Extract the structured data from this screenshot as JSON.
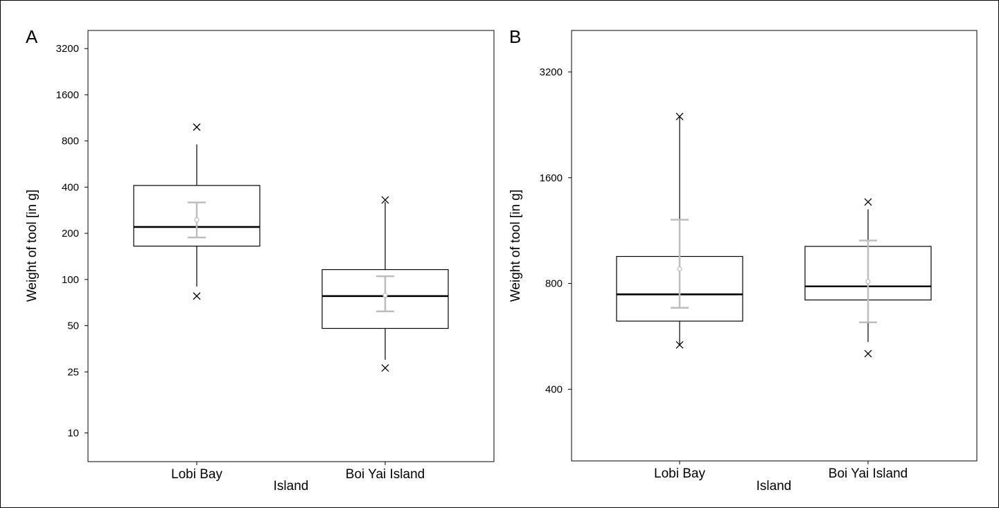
{
  "chart_data": [
    {
      "type": "box",
      "panel_label": "A",
      "xlabel": "Island",
      "ylabel": "Weight of tool [in g]",
      "yscale": "log",
      "ylim": [
        6.5,
        4200
      ],
      "yticks": [
        10,
        25,
        50,
        100,
        200,
        400,
        800,
        1600,
        3200
      ],
      "categories": [
        "Lobi Bay",
        "Boi Yai Island"
      ],
      "groups": [
        {
          "category": "Lobi Bay",
          "q1": 165,
          "median": 220,
          "q3": 410,
          "whisker_low": 90,
          "whisker_high": 760,
          "min_marker": 78,
          "max_marker": 985,
          "mean": 245,
          "ci_low": 188,
          "ci_high": 318
        },
        {
          "category": "Boi Yai Island",
          "q1": 48,
          "median": 78,
          "q3": 116,
          "whisker_low": 30,
          "whisker_high": 320,
          "min_marker": 26.5,
          "max_marker": 330,
          "mean": 79,
          "ci_low": 62,
          "ci_high": 105
        }
      ]
    },
    {
      "type": "box",
      "panel_label": "B",
      "xlabel": "Island",
      "ylabel": "Weight of tool [in g]",
      "yscale": "log",
      "ylim": [
        250,
        4200
      ],
      "yticks": [
        400,
        800,
        1600,
        3200
      ],
      "categories": [
        "Lobi Bay",
        "Boi Yai Island"
      ],
      "groups": [
        {
          "category": "Lobi Bay",
          "q1": 625,
          "median": 745,
          "q3": 955,
          "whisker_low": 535,
          "whisker_high": 2390,
          "min_marker": 535,
          "max_marker": 2390,
          "mean": 880,
          "ci_low": 682,
          "ci_high": 1215
        },
        {
          "category": "Boi Yai Island",
          "q1": 718,
          "median": 785,
          "q3": 1020,
          "whisker_low": 545,
          "whisker_high": 1300,
          "min_marker": 505,
          "max_marker": 1365,
          "mean": 810,
          "ci_low": 620,
          "ci_high": 1060
        }
      ]
    }
  ]
}
